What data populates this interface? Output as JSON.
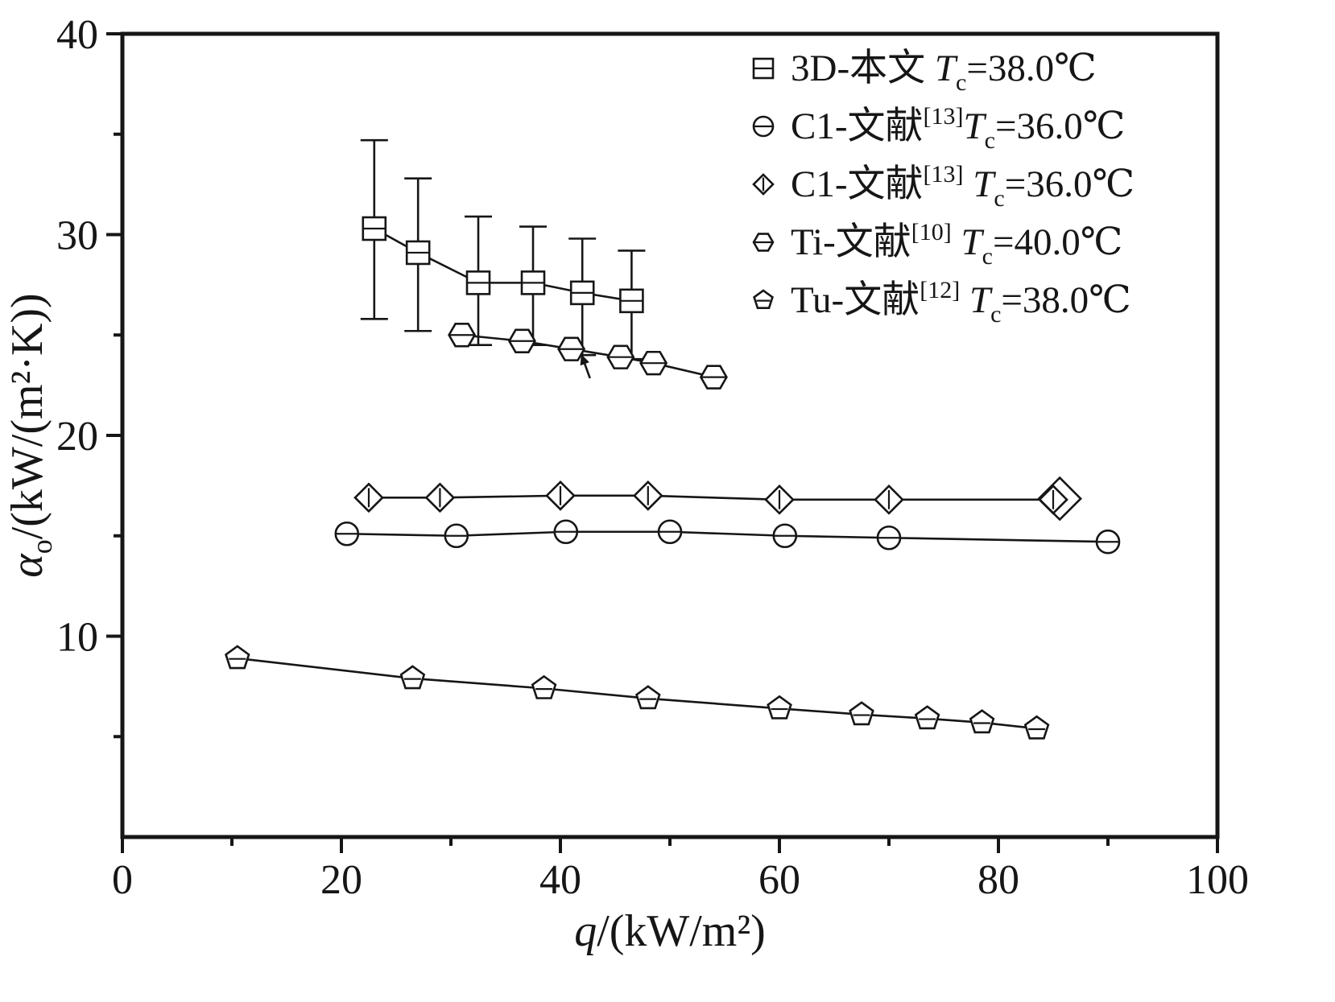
{
  "figure": {
    "background": "#ffffff",
    "ink": "#161616"
  },
  "chart_data": {
    "type": "line",
    "title": "",
    "xlabel": "q/(kW/m²)",
    "ylabel": "αo/(kW/(m²·K))",
    "xlabel_parts": {
      "symbol": "q",
      "rest": "/(kW/m²)"
    },
    "ylabel_parts": {
      "symbol": "α",
      "sub": "o",
      "rest": "/(kW/(m²·K))"
    },
    "xlim": [
      0,
      100
    ],
    "ylim": [
      0,
      40
    ],
    "xticks": [
      0,
      20,
      40,
      60,
      80,
      100
    ],
    "yticks": [
      10,
      20,
      30,
      40
    ],
    "xminor": [
      10,
      30,
      50,
      70,
      90
    ],
    "yminor": [
      5,
      15,
      25,
      35
    ],
    "grid": false,
    "legend_position": "top-right-inside",
    "series": [
      {
        "name": "3D-本文 Tc=38.0℃",
        "marker": "square",
        "legend": {
          "prefix": "3D-本文 ",
          "sup": "",
          "gap": "",
          "tsym": "T",
          "tsub": "c",
          "value": "=38.0℃"
        },
        "x": [
          23,
          27,
          32.5,
          37.5,
          42,
          46.5
        ],
        "y": [
          30.3,
          29.1,
          27.6,
          27.6,
          27.1,
          26.7
        ],
        "err_up": [
          4.4,
          3.7,
          3.3,
          2.8,
          2.7,
          2.5
        ],
        "err_dn": [
          4.5,
          3.9,
          3.1,
          3.1,
          3.1,
          2.9
        ]
      },
      {
        "name": "C1-文献[13]Tc=36.0℃",
        "marker": "circle",
        "legend": {
          "prefix": "C1-文献",
          "sup": "[13]",
          "gap": "",
          "tsym": "T",
          "tsub": "c",
          "value": "=36.0℃"
        },
        "x": [
          20.5,
          30.5,
          40.5,
          50,
          60.5,
          70,
          90
        ],
        "y": [
          15.1,
          15.0,
          15.2,
          15.2,
          15.0,
          14.9,
          14.7
        ]
      },
      {
        "name": "C1-文献[13] Tc=36.0℃",
        "marker": "diamond",
        "legend": {
          "prefix": "C1-文献",
          "sup": "[13]",
          "gap": " ",
          "tsym": "T",
          "tsub": "c",
          "value": "=36.0℃"
        },
        "x": [
          22.5,
          29,
          40,
          48,
          60,
          70,
          85
        ],
        "y": [
          16.9,
          16.9,
          17.0,
          17.0,
          16.8,
          16.8,
          16.8
        ]
      },
      {
        "name": "Ti-文献[10] Tc=40.0℃",
        "marker": "hexagon",
        "legend": {
          "prefix": "Ti-文献",
          "sup": "[10]",
          "gap": " ",
          "tsym": "T",
          "tsub": "c",
          "value": "=40.0℃"
        },
        "x": [
          31,
          36.5,
          41,
          45.5,
          48.5,
          54
        ],
        "y": [
          25.0,
          24.7,
          24.3,
          23.9,
          23.6,
          22.9
        ]
      },
      {
        "name": "Tu-文献[12] Tc=38.0℃",
        "marker": "pentagon",
        "legend": {
          "prefix": "Tu-文献",
          "sup": "[12]",
          "gap": " ",
          "tsym": "T",
          "tsub": "c",
          "value": "=38.0℃"
        },
        "x": [
          10.5,
          26.5,
          38.5,
          48,
          60,
          67.5,
          73.5,
          78.5,
          83.5
        ],
        "y": [
          8.9,
          7.9,
          7.4,
          6.9,
          6.4,
          6.1,
          5.9,
          5.7,
          5.4
        ]
      }
    ],
    "extra_marker": {
      "shape": "diamond",
      "x": 85.6,
      "y": 16.85,
      "size": 26
    },
    "annotation_arrow": {
      "from": [
        42.7,
        22.85
      ],
      "to": [
        41.9,
        24.05
      ]
    }
  }
}
